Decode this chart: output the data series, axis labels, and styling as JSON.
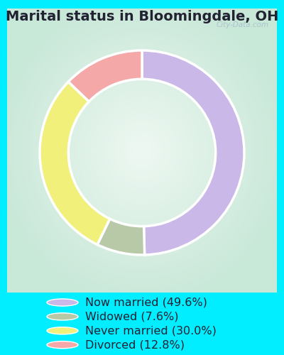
{
  "title": "Marital status in Bloomingdale, OH",
  "slices": [
    49.6,
    7.6,
    30.0,
    12.8
  ],
  "labels": [
    "Now married (49.6%)",
    "Widowed (7.6%)",
    "Never married (30.0%)",
    "Divorced (12.8%)"
  ],
  "colors": [
    "#c9b8e8",
    "#b8c9a8",
    "#f0f07a",
    "#f4a8a8"
  ],
  "outer_bg": "#00eeff",
  "chart_bg_center": "#e8f5ee",
  "chart_bg_edge": "#c8ead8",
  "title_fontsize": 14,
  "legend_fontsize": 11.5,
  "watermark": "City-Data.com",
  "startangle": 90,
  "donut_width": 0.28
}
